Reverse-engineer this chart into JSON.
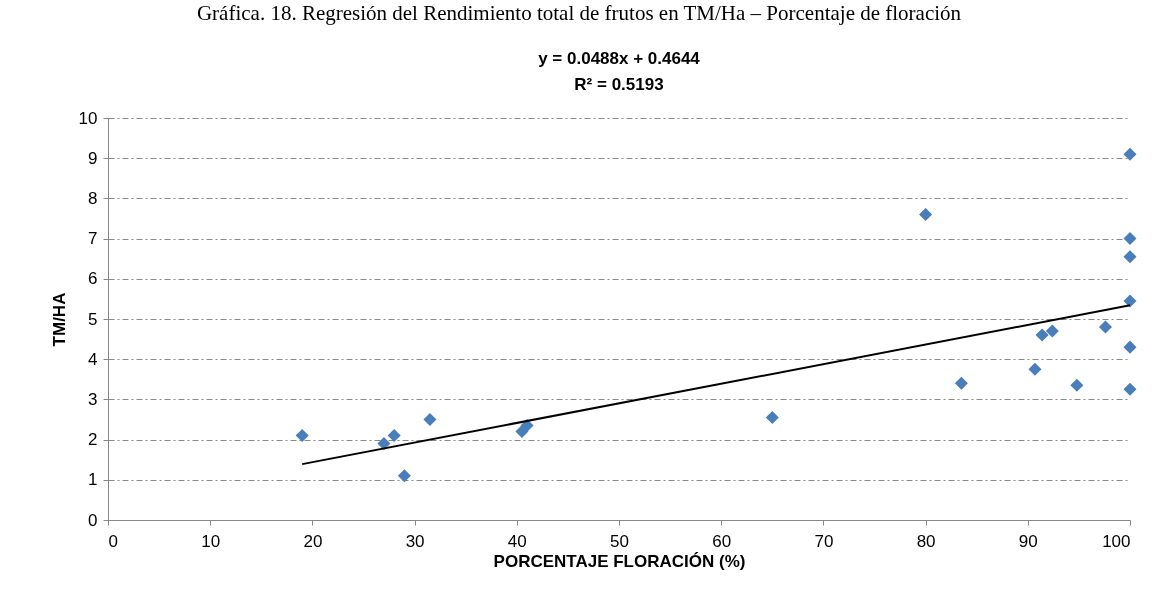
{
  "chart_data": {
    "type": "scatter",
    "title": "Gráfica. 18. Regresión del Rendimiento total de frutos en TM/Ha – Porcentaje de floración",
    "xlabel": "PORCENTAJE FLORACIÓN (%)",
    "ylabel": "TM/HA",
    "annotations": [
      "y = 0.0488x + 0.4644",
      "R² = 0.5193"
    ],
    "series": [
      {
        "marker": "diamond",
        "color": "#4a7ebb",
        "x": [
          19,
          27,
          28,
          29,
          31.5,
          40.5,
          41,
          65,
          80,
          100,
          100,
          100,
          100,
          91.4,
          92.4,
          97.6,
          100,
          90.7,
          83.5,
          94.8,
          100
        ],
        "values": [
          2.1,
          1.9,
          2.1,
          1.1,
          2.5,
          2.2,
          2.35,
          2.55,
          7.6,
          9.1,
          7.0,
          6.55,
          5.45,
          4.6,
          4.7,
          4.8,
          4.3,
          3.75,
          3.4,
          3.35,
          3.25
        ]
      },
      {
        "type": "line",
        "color": "#000000",
        "x": [
          19,
          100
        ],
        "values": [
          1.39,
          5.34
        ]
      }
    ],
    "xlim": [
      0,
      100
    ],
    "xticks": [
      0,
      10,
      20,
      30,
      40,
      50,
      60,
      70,
      80,
      90,
      100
    ],
    "ylim": [
      0,
      10
    ],
    "yticks": [
      0,
      1,
      2,
      3,
      4,
      5,
      6,
      7,
      8,
      9,
      10
    ],
    "grid": "y",
    "line_style": "solid"
  }
}
